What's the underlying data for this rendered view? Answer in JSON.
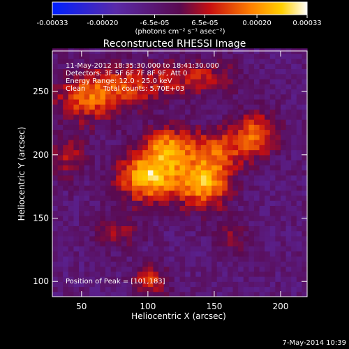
{
  "colorbar": {
    "tick_labels": [
      "-0.00033",
      "-0.00020",
      "-6.5e-05",
      "6.5e-05",
      "0.00020",
      "0.00033"
    ],
    "tick_values": [
      -0.00033,
      -0.0002,
      -6.5e-05,
      6.5e-05,
      0.0002,
      0.00033
    ],
    "range": [
      -0.00033,
      0.00033
    ],
    "units_label": "(photons cm⁻² s⁻¹ asec⁻²)"
  },
  "chart_data": {
    "type": "heatmap",
    "title": "Reconstructed RHESSI Image",
    "xlabel": "Heliocentric X (arcsec)",
    "ylabel": "Heliocentric Y (arcsec)",
    "xlim": [
      28,
      220
    ],
    "ylim": [
      88,
      282
    ],
    "x_ticks": [
      50,
      100,
      150,
      200
    ],
    "y_ticks": [
      100,
      150,
      200,
      250
    ],
    "x_tick_labels": [
      "50",
      "100",
      "150",
      "200"
    ],
    "y_tick_labels": [
      "100",
      "150",
      "200",
      "250"
    ],
    "annotations": [
      "11-May-2012 18:35:30.000 to 18:41:30.000",
      "Detectors: 3F 5F 6F 7F 8F 9F, Att 0",
      "Energy Range: 12.0 - 25.0 keV",
      "Clean",
      "Total counts: 5.70E+03"
    ],
    "peak_label": "Position of Peak = [101,183]",
    "peak": [
      101,
      183
    ],
    "colormap": "blue-purple-red-orange-yellow-white",
    "sources": [
      {
        "x": 101,
        "y": 183,
        "sx": 16,
        "sy": 14,
        "amp": 0.00033
      },
      {
        "x": 142,
        "y": 178,
        "sx": 14,
        "sy": 14,
        "amp": 0.00029
      },
      {
        "x": 115,
        "y": 207,
        "sx": 13,
        "sy": 11,
        "amp": 0.00022
      },
      {
        "x": 155,
        "y": 205,
        "sx": 18,
        "sy": 12,
        "amp": 0.00017
      },
      {
        "x": 183,
        "y": 218,
        "sx": 12,
        "sy": 12,
        "amp": 0.00019
      },
      {
        "x": 55,
        "y": 245,
        "sx": 18,
        "sy": 14,
        "amp": 0.0002
      },
      {
        "x": 90,
        "y": 255,
        "sx": 22,
        "sy": 12,
        "amp": 0.00015
      },
      {
        "x": 140,
        "y": 262,
        "sx": 20,
        "sy": 10,
        "amp": 0.00014
      },
      {
        "x": 40,
        "y": 198,
        "sx": 10,
        "sy": 12,
        "amp": 0.00012
      },
      {
        "x": 78,
        "y": 140,
        "sx": 12,
        "sy": 10,
        "amp": 0.00011
      },
      {
        "x": 102,
        "y": 100,
        "sx": 9,
        "sy": 9,
        "amp": 0.00017
      },
      {
        "x": 163,
        "y": 135,
        "sx": 10,
        "sy": 9,
        "amp": 9e-05
      }
    ],
    "background_level": -7e-05
  },
  "footer": {
    "date_label": "7-May-2014 10:39"
  },
  "colors": {
    "background": "#000000",
    "text": "#ffffff"
  }
}
